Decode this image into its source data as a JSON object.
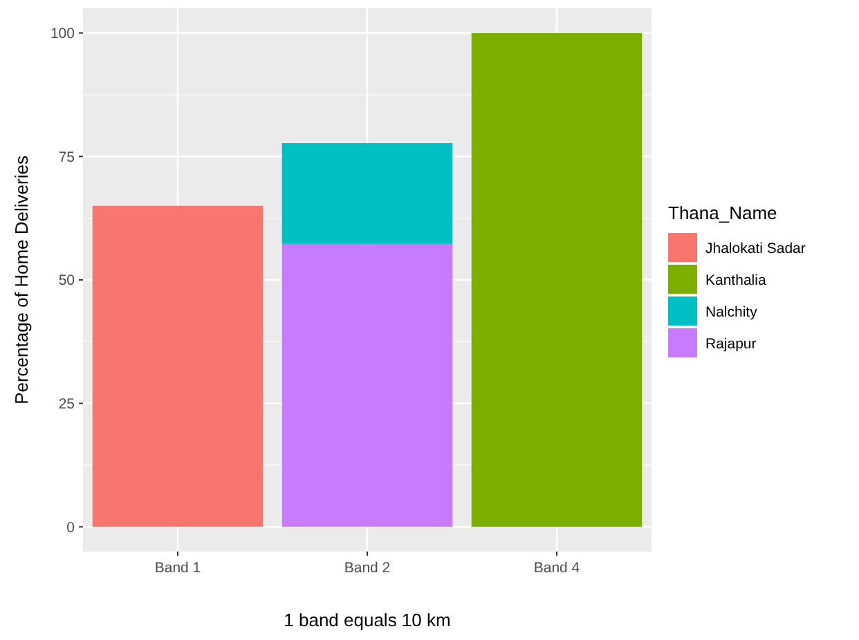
{
  "chart_data": {
    "type": "bar",
    "stacked": true,
    "xlabel": "1 band equals 10 km",
    "ylabel": "Percentage of Home Deliveries",
    "legend_title": "Thana_Name",
    "categories": [
      "Band 1",
      "Band 2",
      "Band 4"
    ],
    "series": [
      {
        "name": "Rajapur",
        "color": "#c77cff",
        "values": [
          null,
          57.3,
          null
        ]
      },
      {
        "name": "Nalchity",
        "color": "#00bfc4",
        "values": [
          null,
          20.4,
          null
        ]
      },
      {
        "name": "Kanthalia",
        "color": "#7cae00",
        "values": [
          null,
          null,
          100
        ]
      },
      {
        "name": "Jhalokati Sadar",
        "color": "#f8766d",
        "values": [
          65,
          null,
          null
        ]
      }
    ],
    "ylim": [
      -5,
      105
    ],
    "yticks": [
      0,
      25,
      50,
      75,
      100
    ],
    "grid": true,
    "legend": "right"
  }
}
